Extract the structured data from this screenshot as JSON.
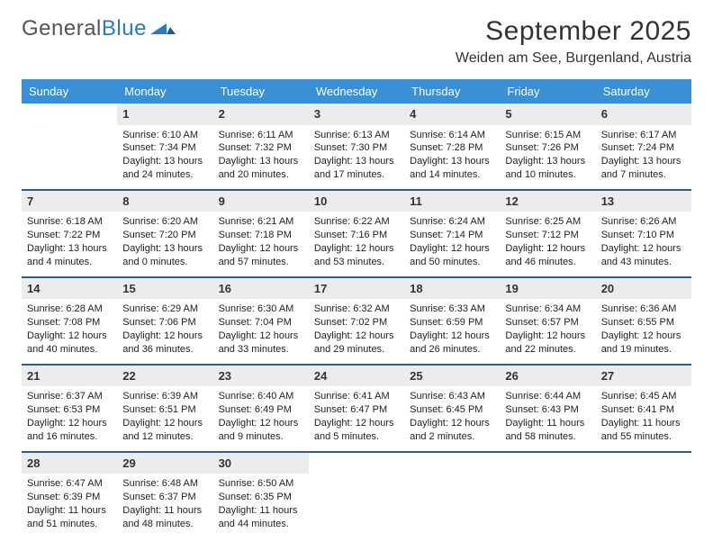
{
  "logo": {
    "word1": "General",
    "word2": "Blue"
  },
  "header": {
    "month_title": "September 2025",
    "location": "Weiden am See, Burgenland, Austria"
  },
  "style": {
    "header_bg": "#3b8fd4",
    "header_text": "#ffffff",
    "week_divider": "#2f5e87",
    "daynum_bg": "#ececec",
    "daynum_color": "#333333",
    "body_text": "#222222",
    "background": "#ffffff",
    "month_title_fontsize": 30,
    "location_fontsize": 16,
    "weekday_fontsize": 13,
    "daynum_fontsize": 13,
    "cell_fontsize": 11
  },
  "weekdays": [
    "Sunday",
    "Monday",
    "Tuesday",
    "Wednesday",
    "Thursday",
    "Friday",
    "Saturday"
  ],
  "weeks": [
    [
      {
        "empty": true
      },
      {
        "num": "1",
        "sunrise": "Sunrise: 6:10 AM",
        "sunset": "Sunset: 7:34 PM",
        "daylight": "Daylight: 13 hours and 24 minutes."
      },
      {
        "num": "2",
        "sunrise": "Sunrise: 6:11 AM",
        "sunset": "Sunset: 7:32 PM",
        "daylight": "Daylight: 13 hours and 20 minutes."
      },
      {
        "num": "3",
        "sunrise": "Sunrise: 6:13 AM",
        "sunset": "Sunset: 7:30 PM",
        "daylight": "Daylight: 13 hours and 17 minutes."
      },
      {
        "num": "4",
        "sunrise": "Sunrise: 6:14 AM",
        "sunset": "Sunset: 7:28 PM",
        "daylight": "Daylight: 13 hours and 14 minutes."
      },
      {
        "num": "5",
        "sunrise": "Sunrise: 6:15 AM",
        "sunset": "Sunset: 7:26 PM",
        "daylight": "Daylight: 13 hours and 10 minutes."
      },
      {
        "num": "6",
        "sunrise": "Sunrise: 6:17 AM",
        "sunset": "Sunset: 7:24 PM",
        "daylight": "Daylight: 13 hours and 7 minutes."
      }
    ],
    [
      {
        "num": "7",
        "sunrise": "Sunrise: 6:18 AM",
        "sunset": "Sunset: 7:22 PM",
        "daylight": "Daylight: 13 hours and 4 minutes."
      },
      {
        "num": "8",
        "sunrise": "Sunrise: 6:20 AM",
        "sunset": "Sunset: 7:20 PM",
        "daylight": "Daylight: 13 hours and 0 minutes."
      },
      {
        "num": "9",
        "sunrise": "Sunrise: 6:21 AM",
        "sunset": "Sunset: 7:18 PM",
        "daylight": "Daylight: 12 hours and 57 minutes."
      },
      {
        "num": "10",
        "sunrise": "Sunrise: 6:22 AM",
        "sunset": "Sunset: 7:16 PM",
        "daylight": "Daylight: 12 hours and 53 minutes."
      },
      {
        "num": "11",
        "sunrise": "Sunrise: 6:24 AM",
        "sunset": "Sunset: 7:14 PM",
        "daylight": "Daylight: 12 hours and 50 minutes."
      },
      {
        "num": "12",
        "sunrise": "Sunrise: 6:25 AM",
        "sunset": "Sunset: 7:12 PM",
        "daylight": "Daylight: 12 hours and 46 minutes."
      },
      {
        "num": "13",
        "sunrise": "Sunrise: 6:26 AM",
        "sunset": "Sunset: 7:10 PM",
        "daylight": "Daylight: 12 hours and 43 minutes."
      }
    ],
    [
      {
        "num": "14",
        "sunrise": "Sunrise: 6:28 AM",
        "sunset": "Sunset: 7:08 PM",
        "daylight": "Daylight: 12 hours and 40 minutes."
      },
      {
        "num": "15",
        "sunrise": "Sunrise: 6:29 AM",
        "sunset": "Sunset: 7:06 PM",
        "daylight": "Daylight: 12 hours and 36 minutes."
      },
      {
        "num": "16",
        "sunrise": "Sunrise: 6:30 AM",
        "sunset": "Sunset: 7:04 PM",
        "daylight": "Daylight: 12 hours and 33 minutes."
      },
      {
        "num": "17",
        "sunrise": "Sunrise: 6:32 AM",
        "sunset": "Sunset: 7:02 PM",
        "daylight": "Daylight: 12 hours and 29 minutes."
      },
      {
        "num": "18",
        "sunrise": "Sunrise: 6:33 AM",
        "sunset": "Sunset: 6:59 PM",
        "daylight": "Daylight: 12 hours and 26 minutes."
      },
      {
        "num": "19",
        "sunrise": "Sunrise: 6:34 AM",
        "sunset": "Sunset: 6:57 PM",
        "daylight": "Daylight: 12 hours and 22 minutes."
      },
      {
        "num": "20",
        "sunrise": "Sunrise: 6:36 AM",
        "sunset": "Sunset: 6:55 PM",
        "daylight": "Daylight: 12 hours and 19 minutes."
      }
    ],
    [
      {
        "num": "21",
        "sunrise": "Sunrise: 6:37 AM",
        "sunset": "Sunset: 6:53 PM",
        "daylight": "Daylight: 12 hours and 16 minutes."
      },
      {
        "num": "22",
        "sunrise": "Sunrise: 6:39 AM",
        "sunset": "Sunset: 6:51 PM",
        "daylight": "Daylight: 12 hours and 12 minutes."
      },
      {
        "num": "23",
        "sunrise": "Sunrise: 6:40 AM",
        "sunset": "Sunset: 6:49 PM",
        "daylight": "Daylight: 12 hours and 9 minutes."
      },
      {
        "num": "24",
        "sunrise": "Sunrise: 6:41 AM",
        "sunset": "Sunset: 6:47 PM",
        "daylight": "Daylight: 12 hours and 5 minutes."
      },
      {
        "num": "25",
        "sunrise": "Sunrise: 6:43 AM",
        "sunset": "Sunset: 6:45 PM",
        "daylight": "Daylight: 12 hours and 2 minutes."
      },
      {
        "num": "26",
        "sunrise": "Sunrise: 6:44 AM",
        "sunset": "Sunset: 6:43 PM",
        "daylight": "Daylight: 11 hours and 58 minutes."
      },
      {
        "num": "27",
        "sunrise": "Sunrise: 6:45 AM",
        "sunset": "Sunset: 6:41 PM",
        "daylight": "Daylight: 11 hours and 55 minutes."
      }
    ],
    [
      {
        "num": "28",
        "sunrise": "Sunrise: 6:47 AM",
        "sunset": "Sunset: 6:39 PM",
        "daylight": "Daylight: 11 hours and 51 minutes."
      },
      {
        "num": "29",
        "sunrise": "Sunrise: 6:48 AM",
        "sunset": "Sunset: 6:37 PM",
        "daylight": "Daylight: 11 hours and 48 minutes."
      },
      {
        "num": "30",
        "sunrise": "Sunrise: 6:50 AM",
        "sunset": "Sunset: 6:35 PM",
        "daylight": "Daylight: 11 hours and 44 minutes."
      },
      {
        "empty": true
      },
      {
        "empty": true
      },
      {
        "empty": true
      },
      {
        "empty": true
      }
    ]
  ]
}
